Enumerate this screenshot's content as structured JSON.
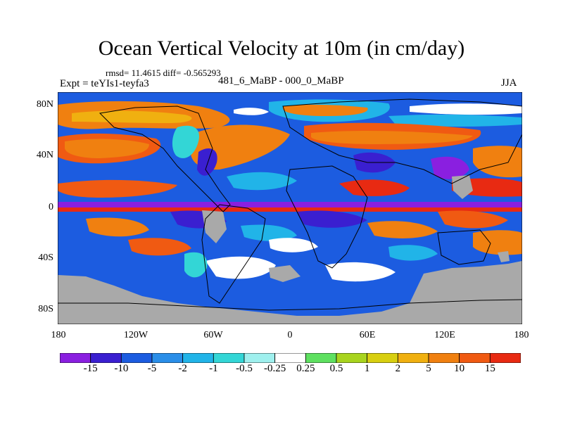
{
  "title": "Ocean Vertical Velocity at 10m (in cm/day)",
  "stats": "rmsd= 11.4615 diff= -0.565293",
  "experiment": "Expt = teYIs1-teyfa3",
  "period": "481_6_MaBP - 000_0_MaBP",
  "season": "JJA",
  "y_ticks": [
    "80N",
    "40N",
    "0",
    "40S",
    "80S"
  ],
  "x_ticks": [
    "180",
    "120W",
    "60W",
    "0",
    "60E",
    "120E",
    "180"
  ],
  "colorbar": {
    "colors": [
      "#8a1fe0",
      "#3a1fd0",
      "#1c5ce0",
      "#2a8ee8",
      "#21b4e8",
      "#33d6d6",
      "#9ff0ee",
      "#ffffff",
      "#5ee060",
      "#a8d41e",
      "#d8cf10",
      "#f0b010",
      "#f08010",
      "#f05a12",
      "#e82a12"
    ],
    "labels": [
      "-15",
      "-10",
      "-5",
      "-2",
      "-1",
      "-0.5",
      "-0.25",
      "0.25",
      "0.5",
      "1",
      "2",
      "5",
      "10",
      "15"
    ]
  },
  "map_colors": {
    "land": "#a9a9a9",
    "outline": "#000000"
  }
}
